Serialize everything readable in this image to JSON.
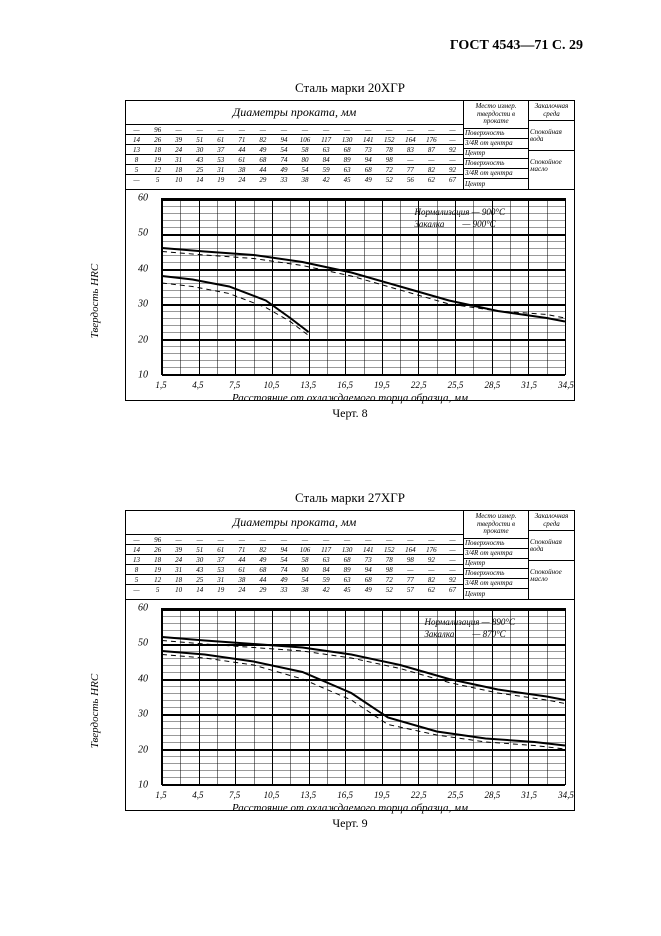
{
  "page_header": "ГОСТ 4543—71 С. 29",
  "charts": [
    {
      "title": "Сталь марки 20ХГР",
      "caption": "Черт. 8",
      "diam_title": "Диаметры проката, мм",
      "header_col1": "Место измер. твердости в прокате",
      "header_col2": "Зака­лочная среда",
      "diam_rows": [
        [
          "—",
          "96",
          "—",
          "—",
          "—",
          "—",
          "—",
          "—",
          "—",
          "—",
          "—",
          "—",
          "—",
          "—",
          "—",
          "—"
        ],
        [
          "14",
          "26",
          "39",
          "51",
          "61",
          "71",
          "82",
          "94",
          "106",
          "117",
          "130",
          "141",
          "152",
          "164",
          "176",
          "—"
        ],
        [
          "13",
          "18",
          "24",
          "30",
          "37",
          "44",
          "49",
          "54",
          "58",
          "63",
          "68",
          "73",
          "78",
          "83",
          "87",
          "92"
        ],
        [
          "8",
          "19",
          "31",
          "43",
          "53",
          "61",
          "68",
          "74",
          "80",
          "84",
          "89",
          "94",
          "98",
          "—",
          "—",
          "—"
        ],
        [
          "5",
          "12",
          "18",
          "25",
          "31",
          "38",
          "44",
          "49",
          "54",
          "59",
          "63",
          "68",
          "72",
          "77",
          "82",
          "92"
        ],
        [
          "—",
          "5",
          "10",
          "14",
          "19",
          "24",
          "29",
          "33",
          "38",
          "42",
          "45",
          "49",
          "52",
          "56",
          "62",
          "67"
        ]
      ],
      "loc_labels": [
        "Поверхность",
        "3/4R от центра",
        "Центр",
        "Поверхность",
        "3/4R от центра",
        "Центр"
      ],
      "media_labels": [
        "Спокой­ная вода",
        "Спокой­ное масло"
      ],
      "ylabel": "Твердость HRC",
      "xlabel": "Расстояние от охлаждаемого торца образца, мм",
      "yticks": [
        10,
        20,
        30,
        40,
        50,
        60
      ],
      "ylim": [
        10,
        60
      ],
      "xticks": [
        "1,5",
        "4,5",
        "7,5",
        "10,5",
        "13,5",
        "16,5",
        "19,5",
        "22,5",
        "25,5",
        "28,5",
        "31,5",
        "34,5"
      ],
      "xlim": [
        1.5,
        34.5
      ],
      "annotation": "Нормализация — 900°С\nЗакалка        — 900°С",
      "curves": [
        {
          "style": "solid",
          "width": 2,
          "pts": [
            [
              1.5,
              46
            ],
            [
              5,
              45
            ],
            [
              9,
              44
            ],
            [
              13,
              42
            ],
            [
              17,
              39
            ],
            [
              21,
              35
            ],
            [
              25,
              31
            ],
            [
              29,
              28
            ],
            [
              33,
              26
            ],
            [
              34.5,
              25
            ]
          ]
        },
        {
          "style": "dash",
          "width": 1,
          "pts": [
            [
              1.5,
              45
            ],
            [
              5,
              44
            ],
            [
              9,
              43
            ],
            [
              13,
              41
            ],
            [
              17,
              38
            ],
            [
              21,
              34
            ],
            [
              25,
              30
            ],
            [
              29,
              28
            ],
            [
              33,
              27
            ],
            [
              34.5,
              26
            ]
          ]
        },
        {
          "style": "solid",
          "width": 2,
          "pts": [
            [
              1.5,
              38
            ],
            [
              4,
              37
            ],
            [
              7,
              35
            ],
            [
              10,
              31
            ],
            [
              12,
              26
            ],
            [
              13.5,
              22
            ]
          ]
        },
        {
          "style": "dash",
          "width": 1,
          "pts": [
            [
              1.5,
              36
            ],
            [
              4,
              35
            ],
            [
              7,
              33
            ],
            [
              10,
              29
            ],
            [
              12,
              25
            ],
            [
              13.5,
              21
            ]
          ]
        }
      ]
    },
    {
      "title": "Сталь марки 27ХГР",
      "caption": "Черт. 9",
      "diam_title": "Диаметры проката, мм",
      "header_col1": "Место измер. твердости в прокате",
      "header_col2": "Зака­лочная среда",
      "diam_rows": [
        [
          "—",
          "96",
          "—",
          "—",
          "—",
          "—",
          "—",
          "—",
          "—",
          "—",
          "—",
          "—",
          "—",
          "—",
          "—",
          "—"
        ],
        [
          "14",
          "26",
          "39",
          "51",
          "61",
          "71",
          "82",
          "94",
          "106",
          "117",
          "130",
          "141",
          "152",
          "164",
          "176",
          "—"
        ],
        [
          "13",
          "18",
          "24",
          "30",
          "37",
          "44",
          "49",
          "54",
          "58",
          "63",
          "68",
          "73",
          "78",
          "98",
          "92",
          "—"
        ],
        [
          "8",
          "19",
          "31",
          "43",
          "53",
          "61",
          "68",
          "74",
          "80",
          "84",
          "89",
          "94",
          "98",
          "—",
          "—",
          "—"
        ],
        [
          "5",
          "12",
          "18",
          "25",
          "31",
          "38",
          "44",
          "49",
          "54",
          "59",
          "63",
          "68",
          "72",
          "77",
          "82",
          "92"
        ],
        [
          "—",
          "5",
          "10",
          "14",
          "19",
          "24",
          "29",
          "33",
          "38",
          "42",
          "45",
          "49",
          "52",
          "57",
          "62",
          "67"
        ]
      ],
      "loc_labels": [
        "Поверхность",
        "3/4R от центра",
        "Центр",
        "Поверхность",
        "3/4R от центра",
        "Центр"
      ],
      "media_labels": [
        "Спокой­ная вода",
        "Спокой­ное масло"
      ],
      "ylabel": "Твердость HRC",
      "xlabel": "Расстояние от охлаждаемого торца образца, мм",
      "yticks": [
        10,
        20,
        30,
        40,
        50,
        60
      ],
      "ylim": [
        10,
        60
      ],
      "xticks": [
        "1,5",
        "4,5",
        "7,5",
        "10,5",
        "13,5",
        "16,5",
        "19,5",
        "22,5",
        "25,5",
        "28,5",
        "31,5",
        "34,5"
      ],
      "xlim": [
        1.5,
        34.5
      ],
      "annotation": "Нормализация — 890°С\nЗакалка        — 870°С",
      "curves": [
        {
          "style": "solid",
          "width": 2,
          "pts": [
            [
              1.5,
              52
            ],
            [
              5,
              51
            ],
            [
              9,
              50
            ],
            [
              13,
              49
            ],
            [
              17,
              47
            ],
            [
              21,
              44
            ],
            [
              25,
              40
            ],
            [
              29,
              37
            ],
            [
              33,
              35
            ],
            [
              34.5,
              34
            ]
          ]
        },
        {
          "style": "dash",
          "width": 1,
          "pts": [
            [
              1.5,
              51
            ],
            [
              5,
              50
            ],
            [
              9,
              49
            ],
            [
              13,
              48
            ],
            [
              17,
              46
            ],
            [
              21,
              43
            ],
            [
              25,
              39
            ],
            [
              29,
              36
            ],
            [
              33,
              34
            ],
            [
              34.5,
              33
            ]
          ]
        },
        {
          "style": "solid",
          "width": 2,
          "pts": [
            [
              1.5,
              48
            ],
            [
              5,
              47
            ],
            [
              9,
              45
            ],
            [
              13,
              42
            ],
            [
              17,
              36
            ],
            [
              20,
              29
            ],
            [
              24,
              25
            ],
            [
              28,
              23
            ],
            [
              32,
              22
            ],
            [
              34.5,
              21
            ]
          ]
        },
        {
          "style": "dash",
          "width": 1,
          "pts": [
            [
              1.5,
              47
            ],
            [
              5,
              46
            ],
            [
              9,
              44
            ],
            [
              13,
              40
            ],
            [
              17,
              34
            ],
            [
              20,
              27
            ],
            [
              24,
              24
            ],
            [
              28,
              22
            ],
            [
              32,
              21
            ],
            [
              34.5,
              20
            ]
          ]
        }
      ]
    }
  ]
}
